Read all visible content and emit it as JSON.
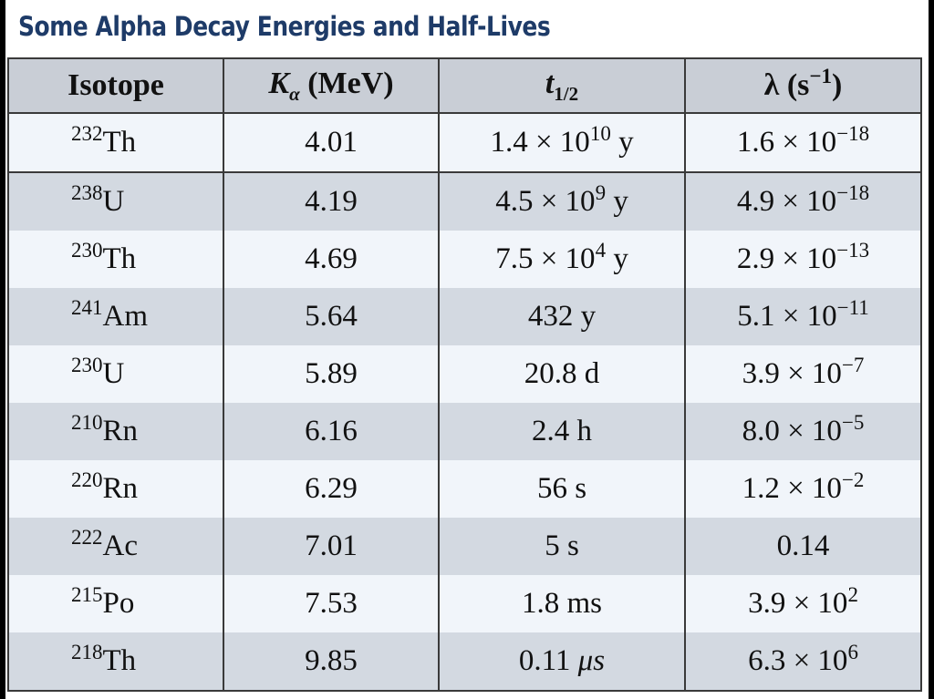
{
  "title": "Some Alpha Decay Energies and Half-Lives",
  "columns": [
    {
      "key": "isotope",
      "label": "Isotope"
    },
    {
      "key": "k",
      "label_main": "K",
      "label_sub": "α",
      "label_tail": " (MeV)"
    },
    {
      "key": "t",
      "label_main": "t",
      "label_sub": "1/2"
    },
    {
      "key": "lambda",
      "label_main": "λ (s",
      "label_sup": "−1",
      "label_tail": ")"
    }
  ],
  "rows": [
    {
      "mass": "232",
      "element": "Th",
      "k": "4.01",
      "t_base": "1.4 × 10",
      "t_exp": "10",
      "t_unit": " y",
      "l_base": "1.6 × 10",
      "l_exp": "−18"
    },
    {
      "mass": "238",
      "element": "U",
      "k": "4.19",
      "t_base": "4.5 × 10",
      "t_exp": "9",
      "t_unit": " y",
      "l_base": "4.9 × 10",
      "l_exp": "−18"
    },
    {
      "mass": "230",
      "element": "Th",
      "k": "4.69",
      "t_base": "7.5 × 10",
      "t_exp": "4",
      "t_unit": " y",
      "l_base": "2.9 × 10",
      "l_exp": "−13"
    },
    {
      "mass": "241",
      "element": "Am",
      "k": "5.64",
      "t_base": "432 y",
      "t_exp": "",
      "t_unit": "",
      "l_base": "5.1 × 10",
      "l_exp": "−11"
    },
    {
      "mass": "230",
      "element": "U",
      "k": "5.89",
      "t_base": "20.8 d",
      "t_exp": "",
      "t_unit": "",
      "l_base": "3.9 × 10",
      "l_exp": "−7"
    },
    {
      "mass": "210",
      "element": "Rn",
      "k": "6.16",
      "t_base": "2.4 h",
      "t_exp": "",
      "t_unit": "",
      "l_base": "8.0 × 10",
      "l_exp": "−5"
    },
    {
      "mass": "220",
      "element": "Rn",
      "k": "6.29",
      "t_base": "56 s",
      "t_exp": "",
      "t_unit": "",
      "l_base": "1.2 × 10",
      "l_exp": "−2"
    },
    {
      "mass": "222",
      "element": "Ac",
      "k": "7.01",
      "t_base": "5 s",
      "t_exp": "",
      "t_unit": "",
      "l_base": "0.14",
      "l_exp": ""
    },
    {
      "mass": "215",
      "element": "Po",
      "k": "7.53",
      "t_base": "1.8 ms",
      "t_exp": "",
      "t_unit": "",
      "l_base": "3.9 × 10",
      "l_exp": "2"
    },
    {
      "mass": "218",
      "element": "Th",
      "k": "9.85",
      "t_base": "0.11 ",
      "t_exp": "",
      "t_unit": "",
      "t_mu": "μs",
      "l_base": "6.3 × 10",
      "l_exp": "6"
    }
  ]
}
